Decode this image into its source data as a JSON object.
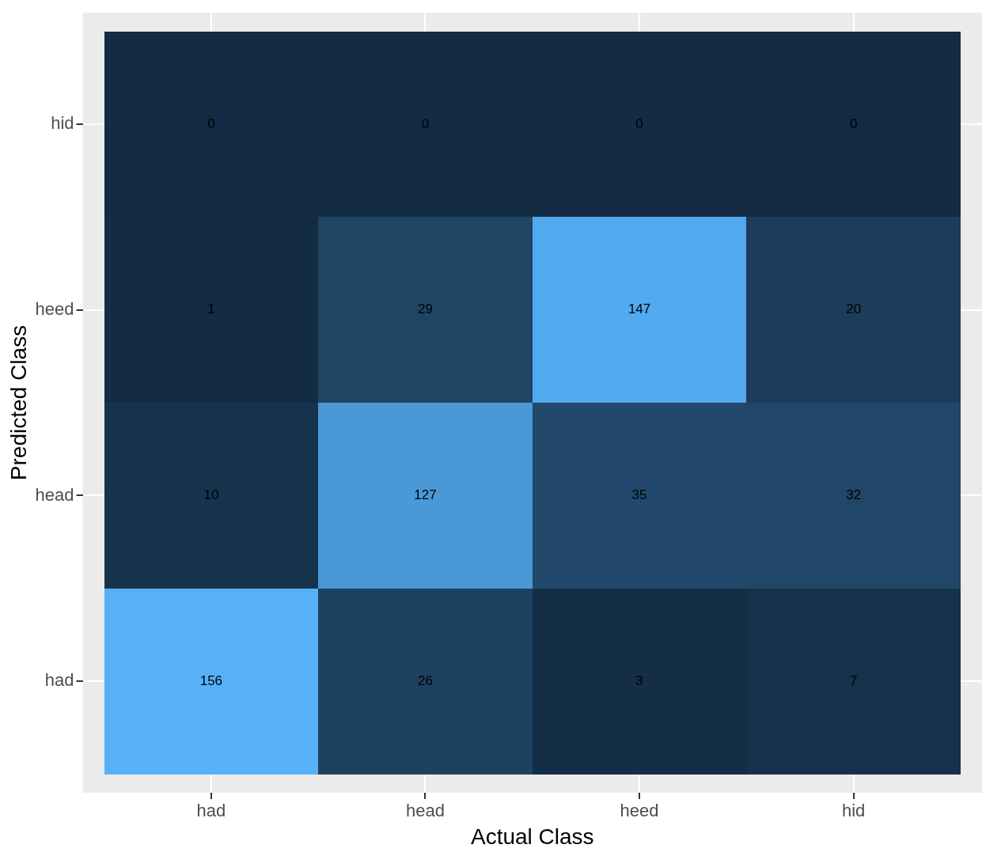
{
  "chart_data": {
    "type": "heatmap",
    "xlabel": "Actual Class",
    "ylabel": "Predicted Class",
    "categories": [
      "had",
      "head",
      "heed",
      "hid"
    ],
    "y_categories": [
      "hid",
      "heed",
      "head",
      "had"
    ],
    "cells": [
      [
        0,
        0,
        0,
        0
      ],
      [
        1,
        29,
        147,
        20
      ],
      [
        10,
        127,
        35,
        32
      ],
      [
        156,
        26,
        3,
        7
      ]
    ],
    "colors": [
      "#132b43",
      "#56b1f7"
    ],
    "data_labels": true,
    "grid": true,
    "legend": false
  }
}
